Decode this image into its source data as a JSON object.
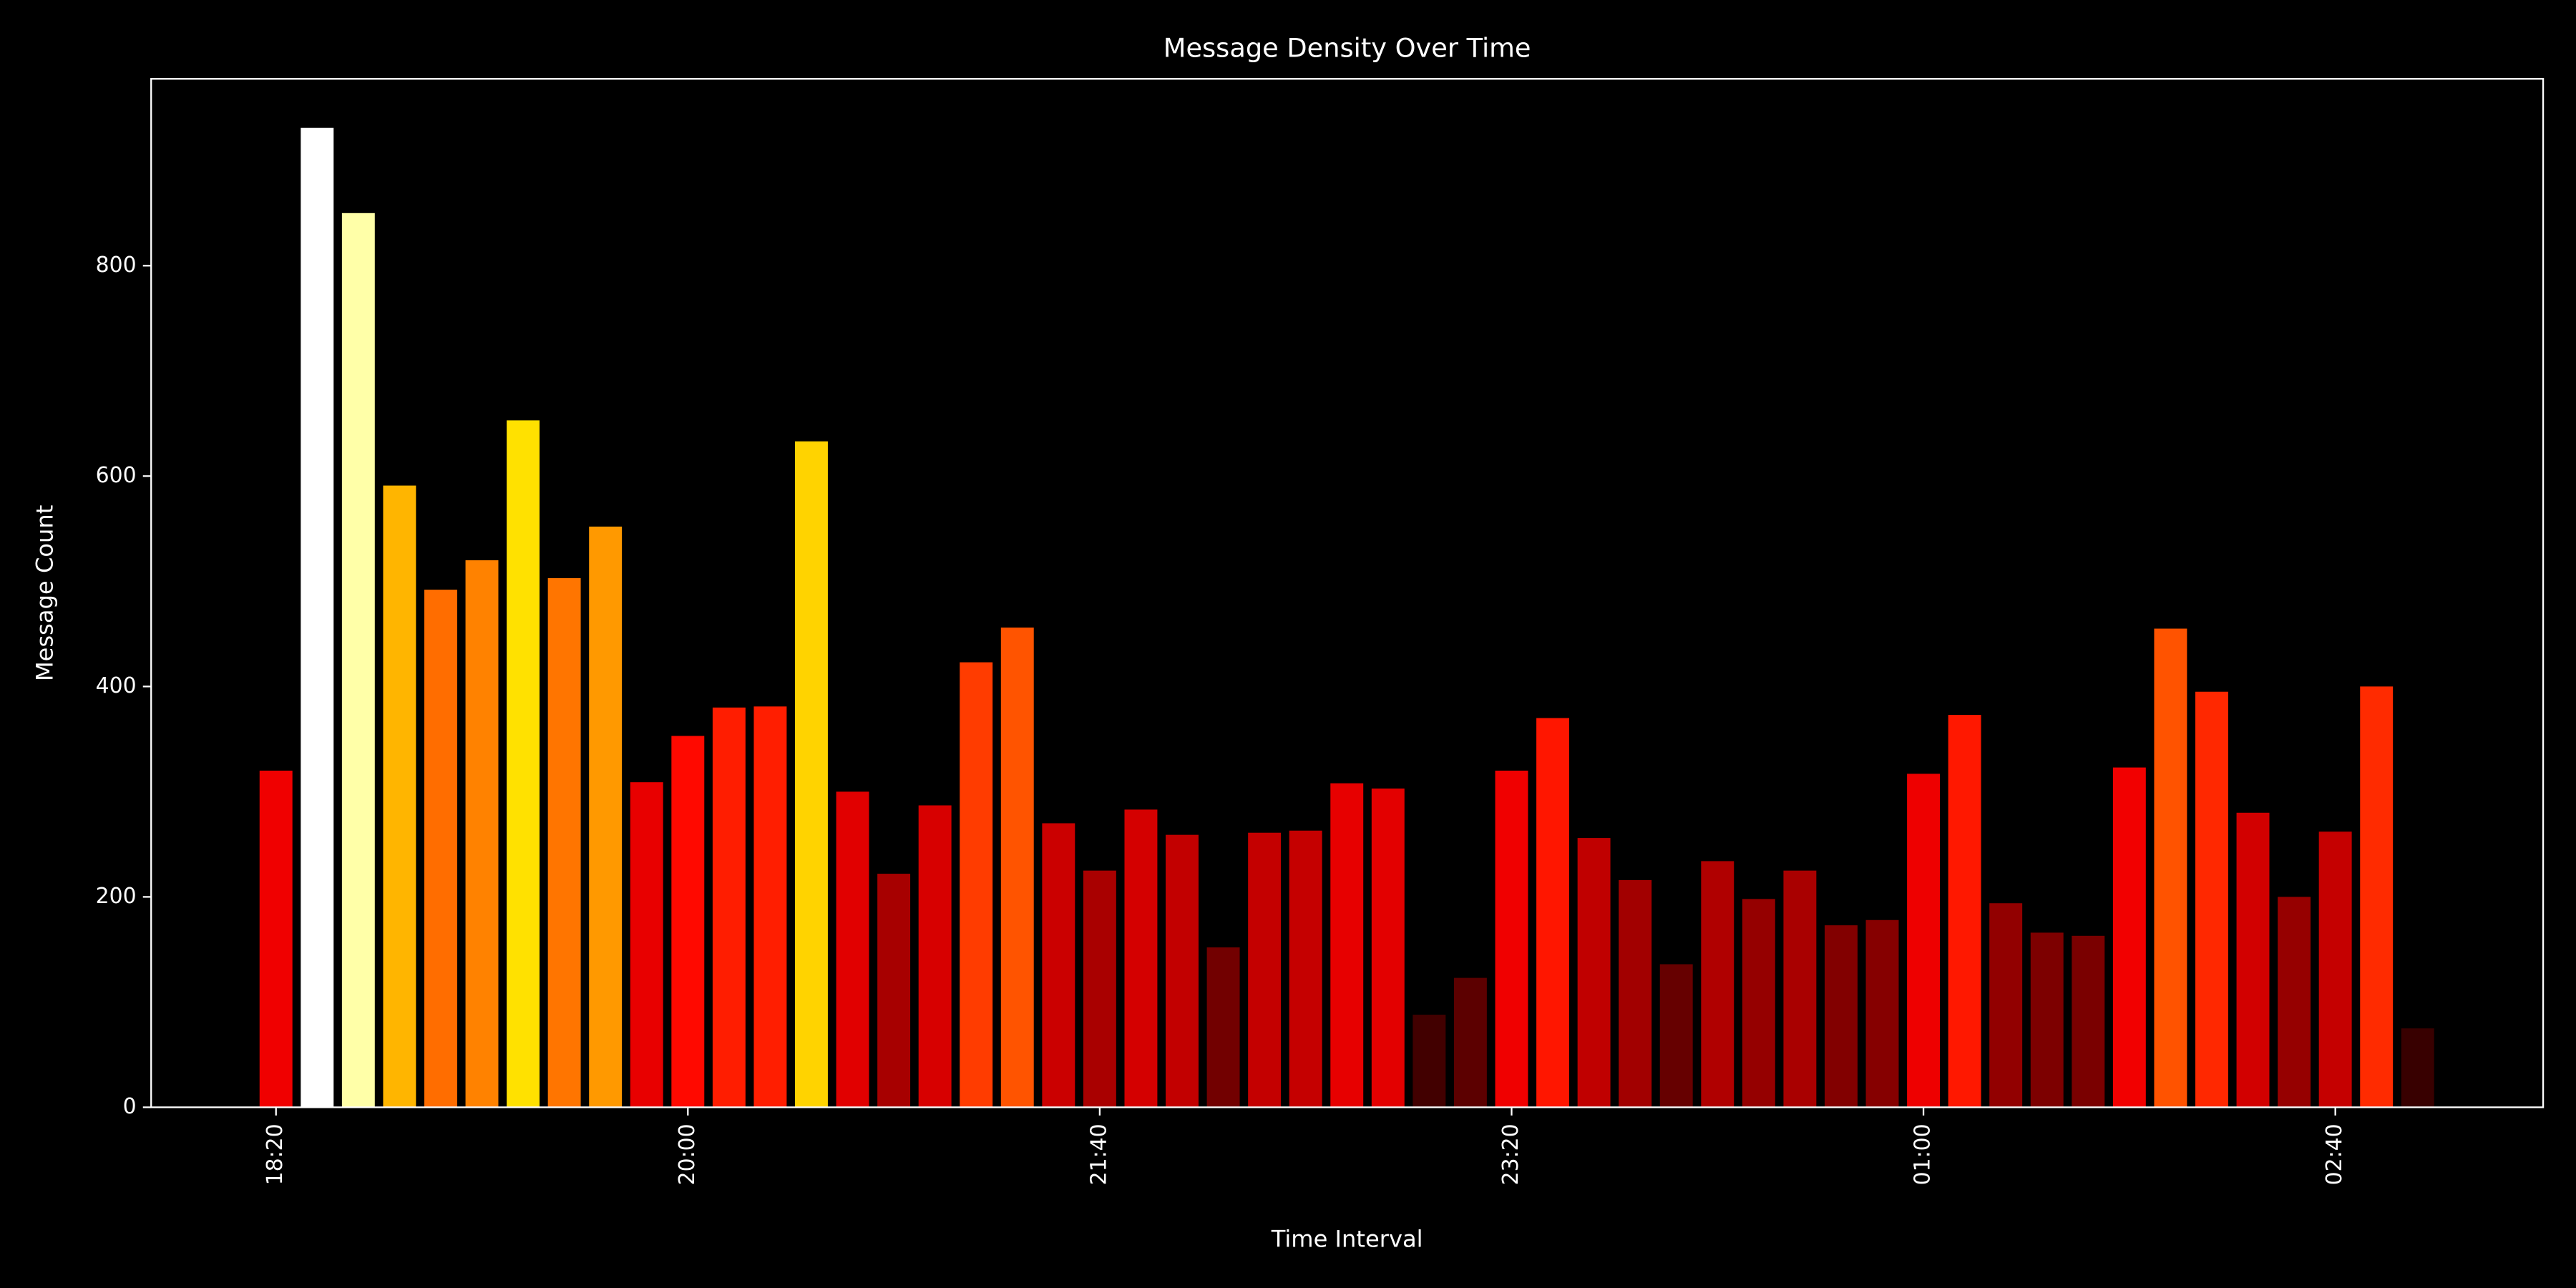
{
  "chart_data": {
    "type": "bar",
    "title": "Message Density Over Time",
    "xlabel": "Time Interval",
    "ylabel": "Message Count",
    "categories": [
      "18:20",
      null,
      null,
      null,
      null,
      null,
      null,
      null,
      null,
      null,
      "20:00",
      null,
      null,
      null,
      null,
      null,
      null,
      null,
      null,
      null,
      "21:40",
      null,
      null,
      null,
      null,
      null,
      null,
      null,
      null,
      null,
      "23:20",
      null,
      null,
      null,
      null,
      null,
      null,
      null,
      null,
      null,
      "01:00",
      null,
      null,
      null,
      null,
      null,
      null,
      null,
      null,
      null,
      "02:40",
      null,
      null
    ],
    "values": [
      320,
      931,
      850,
      591,
      492,
      520,
      653,
      503,
      552,
      309,
      353,
      380,
      381,
      633,
      300,
      222,
      287,
      423,
      456,
      270,
      225,
      283,
      259,
      152,
      261,
      263,
      308,
      303,
      88,
      123,
      320,
      370,
      256,
      216,
      136,
      234,
      198,
      225,
      173,
      178,
      317,
      373,
      194,
      166,
      163,
      323,
      455,
      395,
      280,
      200,
      262,
      400,
      75
    ],
    "colormap": "hot",
    "background": "#000000",
    "foreground": "#ffffff",
    "ylim": [
      0,
      977.6
    ],
    "yticks": [
      0,
      200,
      400,
      600,
      800
    ]
  }
}
